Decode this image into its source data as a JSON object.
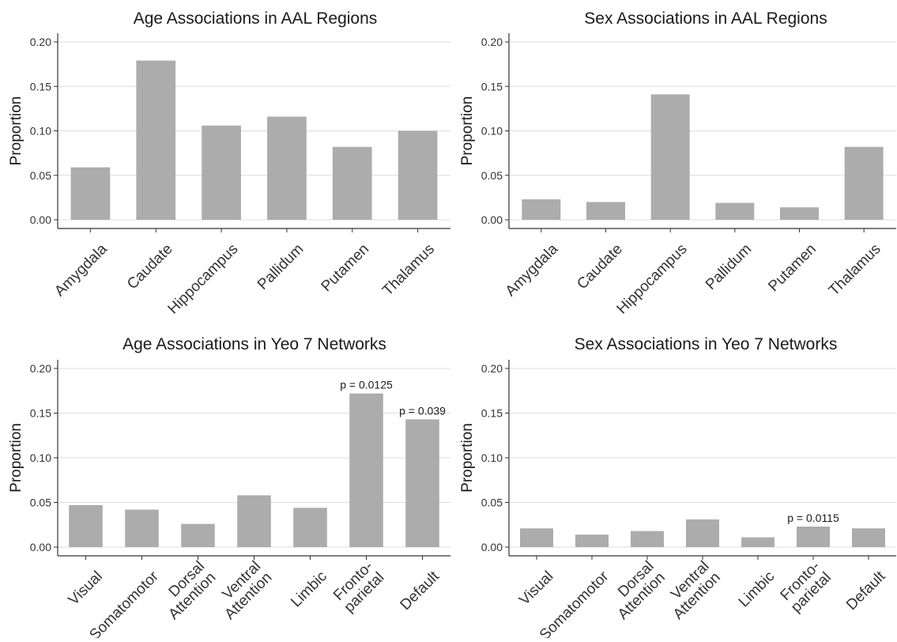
{
  "chart_data": [
    {
      "type": "bar",
      "title": "Age Associations in AAL Regions",
      "ylabel": "Proportion",
      "xlabel": "",
      "ylim": [
        0,
        0.2
      ],
      "yticks": [
        "0.00",
        "0.05",
        "0.10",
        "0.15",
        "0.20"
      ],
      "grid": true,
      "bar_color": "#acacac",
      "categories": [
        [
          "Amygdala"
        ],
        [
          "Caudate"
        ],
        [
          "Hippocampus"
        ],
        [
          "Pallidum"
        ],
        [
          "Putamen"
        ],
        [
          "Thalamus"
        ]
      ],
      "values": [
        0.059,
        0.179,
        0.106,
        0.116,
        0.082,
        0.1
      ],
      "annotations": []
    },
    {
      "type": "bar",
      "title": "Sex Associations in AAL Regions",
      "ylabel": "Proportion",
      "xlabel": "",
      "ylim": [
        0,
        0.2
      ],
      "yticks": [
        "0.00",
        "0.05",
        "0.10",
        "0.15",
        "0.20"
      ],
      "grid": true,
      "bar_color": "#acacac",
      "categories": [
        [
          "Amygdala"
        ],
        [
          "Caudate"
        ],
        [
          "Hippocampus"
        ],
        [
          "Pallidum"
        ],
        [
          "Putamen"
        ],
        [
          "Thalamus"
        ]
      ],
      "values": [
        0.023,
        0.02,
        0.141,
        0.019,
        0.014,
        0.082
      ],
      "annotations": []
    },
    {
      "type": "bar",
      "title": "Age Associations in Yeo 7 Networks",
      "ylabel": "Proportion",
      "xlabel": "",
      "ylim": [
        0,
        0.2
      ],
      "yticks": [
        "0.00",
        "0.05",
        "0.10",
        "0.15",
        "0.20"
      ],
      "grid": true,
      "bar_color": "#acacac",
      "categories": [
        [
          "Visual"
        ],
        [
          "Somatomotor"
        ],
        [
          "Dorsal",
          "Attention"
        ],
        [
          "Ventral",
          "Attention"
        ],
        [
          "Limbic"
        ],
        [
          "Fronto-",
          "parietal"
        ],
        [
          "Default"
        ]
      ],
      "values": [
        0.047,
        0.042,
        0.026,
        0.058,
        0.044,
        0.172,
        0.143
      ],
      "annotations": [
        {
          "category_index": 5,
          "text": "p = 0.0125"
        },
        {
          "category_index": 6,
          "text": "p = 0.039"
        }
      ]
    },
    {
      "type": "bar",
      "title": "Sex Associations in Yeo 7 Networks",
      "ylabel": "Proportion",
      "xlabel": "",
      "ylim": [
        0,
        0.2
      ],
      "yticks": [
        "0.00",
        "0.05",
        "0.10",
        "0.15",
        "0.20"
      ],
      "grid": true,
      "bar_color": "#acacac",
      "categories": [
        [
          "Visual"
        ],
        [
          "Somatomotor"
        ],
        [
          "Dorsal",
          "Attention"
        ],
        [
          "Ventral",
          "Attention"
        ],
        [
          "Limbic"
        ],
        [
          "Fronto-",
          "parietal"
        ],
        [
          "Default"
        ]
      ],
      "values": [
        0.021,
        0.014,
        0.018,
        0.031,
        0.011,
        0.023,
        0.021
      ],
      "annotations": [
        {
          "category_index": 5,
          "text": "p = 0.0115"
        }
      ]
    }
  ]
}
